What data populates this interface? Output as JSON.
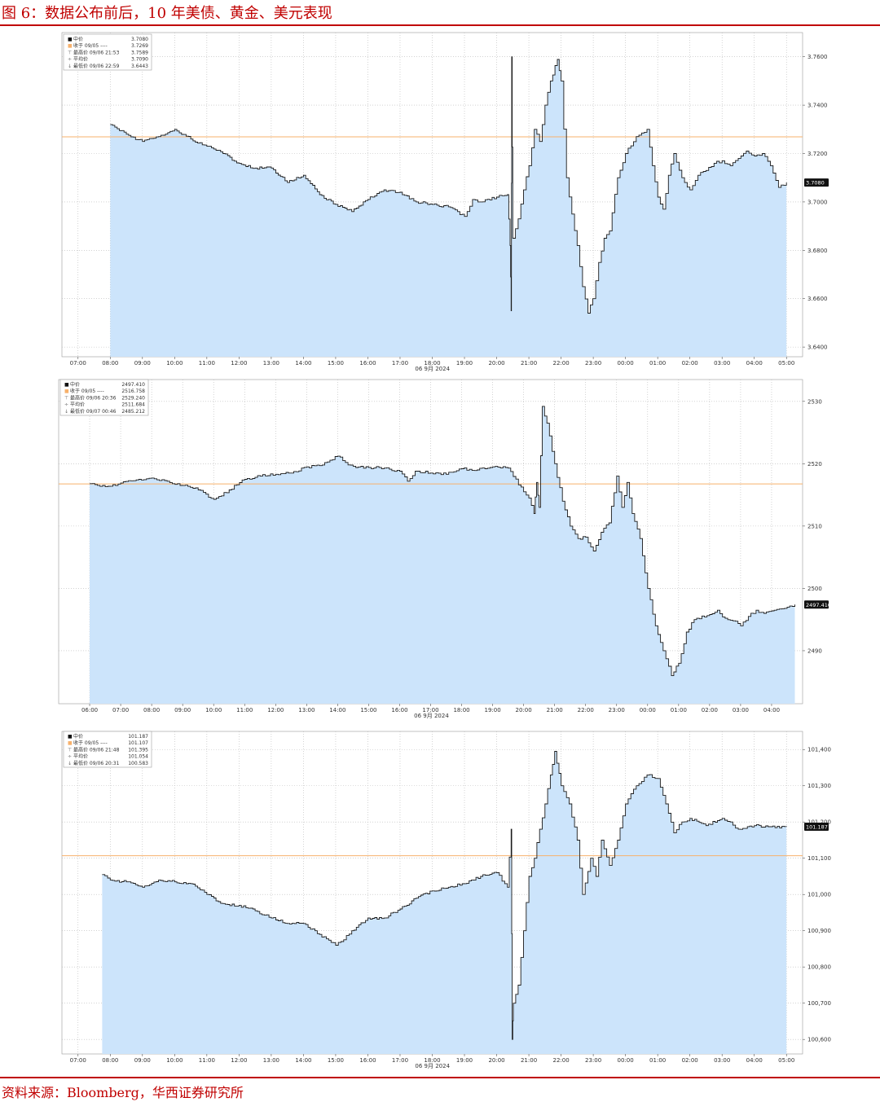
{
  "figure": {
    "title": "图 6：数据公布前后，10 年美债、黄金、美元表现",
    "source": "资料来源：Bloomberg，华西证券研究所"
  },
  "colors": {
    "accent": "#c00000",
    "fill": "#cce4fb",
    "line": "#1a1a1a",
    "prev_close_line": "#f7b16b",
    "grid": "#b8b8b8"
  },
  "chart_data": [
    {
      "type": "area",
      "x_ticks": [
        "07:00",
        "08:00",
        "09:00",
        "10:00",
        "11:00",
        "12:00",
        "13:00",
        "14:00",
        "15:00",
        "16:00",
        "17:00",
        "18:00",
        "19:00",
        "20:00",
        "21:00",
        "22:00",
        "23:00",
        "00:00",
        "01:00",
        "02:00",
        "03:00",
        "04:00",
        "05:00"
      ],
      "date_label": "06 9月 2024",
      "x_range": [
        "06:30",
        "05:30"
      ],
      "y_ticks": [
        "3.6400",
        "3.6600",
        "3.6800",
        "3.7000",
        "3.7200",
        "3.7400",
        "3.7600"
      ],
      "ylim": [
        3.636,
        3.77
      ],
      "last_value_label": "3.7080",
      "prev_close": 3.7269,
      "legend": [
        {
          "label": "中价",
          "value": "3.7080"
        },
        {
          "label": "收于 09/05 ----",
          "value": "3.7269"
        },
        {
          "label": "最高价 09/06 21:53",
          "value": "3.7589"
        },
        {
          "label": "平均价",
          "value": "3.7090"
        },
        {
          "label": "最低价 09/06 22:59",
          "value": "3.6443"
        }
      ],
      "series": [
        {
          "x": [
            "08:00",
            "08:30",
            "09:00",
            "09:30",
            "10:00",
            "10:30",
            "11:00",
            "11:30",
            "12:00",
            "12:30",
            "13:00",
            "13:30",
            "14:00",
            "14:30",
            "15:00",
            "15:30",
            "16:00",
            "16:30",
            "17:00",
            "17:30",
            "18:00",
            "18:30",
            "19:00",
            "19:15",
            "19:30",
            "20:00",
            "20:20",
            "20:25",
            "20:27",
            "20:28",
            "20:30",
            "20:40",
            "20:50",
            "21:00",
            "21:10",
            "21:20",
            "21:30",
            "21:40",
            "21:53",
            "22:00",
            "22:10",
            "22:20",
            "22:30",
            "22:40",
            "22:50",
            "22:59",
            "23:10",
            "23:20",
            "23:30",
            "23:45",
            "00:00",
            "00:20",
            "00:40",
            "00:50",
            "01:00",
            "01:10",
            "01:20",
            "01:30",
            "01:45",
            "02:00",
            "02:15",
            "02:30",
            "02:45",
            "03:00",
            "03:15",
            "03:30",
            "03:45",
            "04:00",
            "04:15",
            "04:30",
            "04:45",
            "05:00"
          ],
          "values": [
            3.732,
            3.728,
            3.725,
            3.727,
            3.73,
            3.726,
            3.723,
            3.72,
            3.716,
            3.714,
            3.714,
            3.708,
            3.711,
            3.703,
            3.699,
            3.696,
            3.701,
            3.705,
            3.704,
            3.7,
            3.699,
            3.698,
            3.694,
            3.701,
            3.7,
            3.702,
            3.703,
            3.682,
            3.655,
            3.76,
            3.685,
            3.693,
            3.705,
            3.715,
            3.73,
            3.725,
            3.74,
            3.75,
            3.7589,
            3.75,
            3.71,
            3.695,
            3.682,
            3.665,
            3.654,
            3.66,
            3.675,
            3.685,
            3.688,
            3.71,
            3.72,
            3.727,
            3.73,
            3.715,
            3.702,
            3.697,
            3.711,
            3.72,
            3.71,
            3.705,
            3.711,
            3.713,
            3.716,
            3.717,
            3.715,
            3.718,
            3.721,
            3.719,
            3.72,
            3.715,
            3.706,
            3.708
          ]
        }
      ]
    },
    {
      "type": "area",
      "x_ticks": [
        "06:00",
        "07:00",
        "08:00",
        "09:00",
        "10:00",
        "11:00",
        "12:00",
        "13:00",
        "14:00",
        "15:00",
        "16:00",
        "17:00",
        "18:00",
        "19:00",
        "20:00",
        "21:00",
        "22:00",
        "23:00",
        "00:00",
        "01:00",
        "02:00",
        "03:00",
        "04:00"
      ],
      "date_label": "06 9月 2024",
      "x_range": [
        "05:00",
        "05:00"
      ],
      "y_ticks": [
        "2490",
        "2500",
        "2510",
        "2520",
        "2530"
      ],
      "ylim": [
        2481.5,
        2533.5
      ],
      "last_value_label": "2497.410",
      "prev_close": 2516.758,
      "legend": [
        {
          "label": "中价",
          "value": "2497.410"
        },
        {
          "label": "收于 09/05 ----",
          "value": "2516.758"
        },
        {
          "label": "最高价 09/06 20:36",
          "value": "2529.240"
        },
        {
          "label": "平均价",
          "value": "2511.684"
        },
        {
          "label": "最低价 09/07 00:46",
          "value": "2485.212"
        }
      ],
      "series": [
        {
          "x": [
            "06:00",
            "06:30",
            "07:00",
            "07:30",
            "08:00",
            "08:30",
            "09:00",
            "09:30",
            "10:00",
            "10:30",
            "11:00",
            "11:30",
            "12:00",
            "12:30",
            "13:00",
            "13:30",
            "14:00",
            "14:15",
            "14:30",
            "15:00",
            "15:30",
            "16:00",
            "16:15",
            "16:30",
            "17:00",
            "17:30",
            "18:00",
            "18:30",
            "19:00",
            "19:30",
            "20:00",
            "20:10",
            "20:20",
            "20:25",
            "20:30",
            "20:36",
            "20:45",
            "21:00",
            "21:15",
            "21:30",
            "21:45",
            "22:00",
            "22:15",
            "22:30",
            "22:45",
            "23:00",
            "23:10",
            "23:20",
            "23:30",
            "23:45",
            "00:00",
            "00:15",
            "00:30",
            "00:46",
            "01:00",
            "01:15",
            "01:30",
            "02:00",
            "02:15",
            "02:30",
            "02:45",
            "03:00",
            "03:15",
            "03:30",
            "03:45",
            "04:00",
            "04:15",
            "04:30",
            "04:45"
          ],
          "values": [
            2516.8,
            2516.3,
            2516.9,
            2517.4,
            2517.7,
            2517.2,
            2516.5,
            2515.8,
            2514.3,
            2515.8,
            2517.5,
            2518.0,
            2518.3,
            2518.5,
            2519.5,
            2519.8,
            2521.2,
            2520.2,
            2519.6,
            2519.4,
            2519.3,
            2518.8,
            2517.2,
            2518.8,
            2518.5,
            2518.3,
            2519.2,
            2519.0,
            2519.5,
            2519.3,
            2515.5,
            2514.5,
            2512.0,
            2517.0,
            2513.0,
            2529.2,
            2526.5,
            2520.0,
            2514.0,
            2510.0,
            2508.0,
            2508.2,
            2506.0,
            2509.0,
            2510.5,
            2518.0,
            2513.0,
            2517.0,
            2512.0,
            2508.0,
            2500.0,
            2494.0,
            2490.0,
            2486.0,
            2488.0,
            2493.0,
            2495.0,
            2495.8,
            2496.5,
            2495.2,
            2494.8,
            2494.0,
            2495.5,
            2496.5,
            2496.0,
            2496.4,
            2496.7,
            2497.0,
            2497.4
          ]
        }
      ]
    },
    {
      "type": "area",
      "x_ticks": [
        "07:00",
        "08:00",
        "09:00",
        "10:00",
        "11:00",
        "12:00",
        "13:00",
        "14:00",
        "15:00",
        "16:00",
        "17:00",
        "18:00",
        "19:00",
        "20:00",
        "21:00",
        "22:00",
        "23:00",
        "00:00",
        "01:00",
        "02:00",
        "03:00",
        "04:00",
        "05:00"
      ],
      "date_label": "06 9月 2024",
      "x_range": [
        "06:30",
        "05:30"
      ],
      "y_ticks": [
        "100,600",
        "100,700",
        "100,800",
        "100,900",
        "101,000",
        "101,100",
        "101,200",
        "101,300",
        "101,400"
      ],
      "ylim": [
        100.56,
        101.45
      ],
      "last_value_label": "101.187",
      "prev_close": 101.107,
      "legend": [
        {
          "label": "中价",
          "value": "101.187"
        },
        {
          "label": "收于 09/05 ----",
          "value": "101.107"
        },
        {
          "label": "最高价 09/06 21:48",
          "value": "101.395"
        },
        {
          "label": "平均价",
          "value": "101.054"
        },
        {
          "label": "最低价 09/06 20:31",
          "value": "100.583"
        }
      ],
      "series": [
        {
          "x": [
            "07:45",
            "08:00",
            "08:30",
            "09:00",
            "09:30",
            "10:00",
            "10:30",
            "11:00",
            "11:30",
            "12:00",
            "12:30",
            "13:00",
            "13:30",
            "14:00",
            "14:30",
            "15:00",
            "15:15",
            "15:30",
            "16:00",
            "16:30",
            "17:00",
            "17:30",
            "18:00",
            "18:30",
            "19:00",
            "19:30",
            "20:00",
            "20:20",
            "20:27",
            "20:29",
            "20:31",
            "20:40",
            "20:50",
            "21:00",
            "21:10",
            "21:20",
            "21:30",
            "21:40",
            "21:48",
            "22:00",
            "22:15",
            "22:30",
            "22:40",
            "22:55",
            "23:05",
            "23:15",
            "23:30",
            "23:45",
            "00:00",
            "00:20",
            "00:40",
            "01:00",
            "01:15",
            "01:30",
            "01:45",
            "02:00",
            "02:30",
            "03:00",
            "03:15",
            "03:30",
            "04:00",
            "04:30",
            "05:00"
          ],
          "values": [
            101.055,
            101.04,
            101.035,
            101.02,
            101.04,
            101.035,
            101.03,
            101.0,
            100.975,
            100.97,
            100.955,
            100.935,
            100.92,
            100.92,
            100.89,
            100.86,
            100.875,
            100.9,
            100.935,
            100.935,
            100.96,
            100.99,
            101.01,
            101.02,
            101.03,
            101.05,
            101.06,
            101.02,
            101.18,
            100.6,
            100.7,
            100.75,
            100.9,
            101.05,
            101.1,
            101.18,
            101.25,
            101.33,
            101.395,
            101.3,
            101.25,
            101.15,
            101.0,
            101.1,
            101.05,
            101.15,
            101.08,
            101.15,
            101.25,
            101.3,
            101.33,
            101.32,
            101.25,
            101.17,
            101.2,
            101.21,
            101.19,
            101.21,
            101.2,
            101.18,
            101.19,
            101.187,
            101.187
          ]
        }
      ]
    }
  ]
}
